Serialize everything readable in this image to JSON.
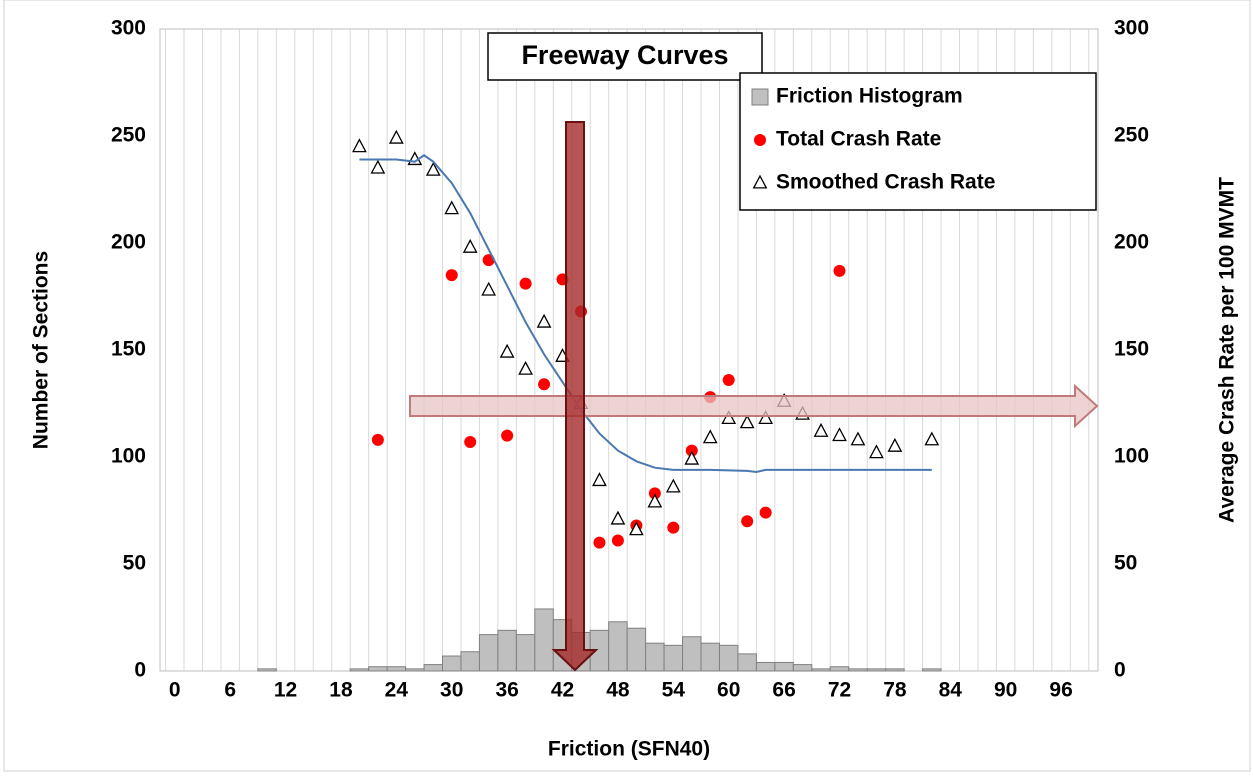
{
  "chart_data": {
    "type": "combo",
    "annotation": "Freeway Curves",
    "xlabel": "Friction (SFN40)",
    "ylabel": "Number of Sections",
    "y2label": "Average Crash Rate per 100 MVMT",
    "xlim": [
      -1.6,
      100
    ],
    "xticks": [
      0,
      6,
      12,
      18,
      24,
      30,
      36,
      42,
      48,
      54,
      60,
      66,
      72,
      78,
      84,
      90,
      96
    ],
    "ylim": [
      0,
      300
    ],
    "yticks": [
      0,
      50,
      100,
      150,
      200,
      250,
      300
    ],
    "y2lim": [
      0,
      300
    ],
    "y2ticks": [
      0,
      50,
      100,
      150,
      200,
      250,
      300
    ],
    "grid": "x",
    "legend": "upper right",
    "histogram": {
      "name": "Friction Histogram",
      "color": "#bfbfbf",
      "bins": [
        -1,
        1,
        3,
        5,
        7,
        9,
        11,
        13,
        15,
        17,
        19,
        21,
        23,
        25,
        27,
        29,
        31,
        33,
        35,
        37,
        39,
        41,
        43,
        45,
        47,
        49,
        51,
        53,
        55,
        57,
        59,
        61,
        63,
        65,
        67,
        69,
        71,
        73,
        75,
        77,
        79,
        81,
        83,
        85,
        87,
        89,
        91,
        93,
        95,
        97,
        99
      ],
      "counts": [
        0,
        0,
        0,
        0,
        0,
        1,
        0,
        0,
        0,
        0,
        1,
        2,
        2,
        1,
        3,
        7,
        9,
        17,
        19,
        17,
        29,
        24,
        18,
        19,
        23,
        20,
        13,
        12,
        16,
        13,
        12,
        8,
        4,
        4,
        3,
        1,
        2,
        1,
        1,
        1,
        0,
        1,
        0,
        0,
        0,
        0,
        0,
        0,
        0,
        0
      ]
    },
    "series": [
      {
        "name": "Total Crash Rate",
        "type": "scatter",
        "marker": "circle",
        "color": "#ff0000",
        "axis": "y2",
        "x": [
          22,
          30,
          32,
          34,
          36,
          38,
          40,
          42,
          44,
          46,
          48,
          50,
          52,
          54,
          56,
          58,
          60,
          62,
          64,
          72
        ],
        "values": [
          108,
          185,
          107,
          192,
          110,
          181,
          134,
          183,
          168,
          60,
          61,
          68,
          83,
          67,
          103,
          128,
          136,
          70,
          74,
          187
        ]
      },
      {
        "name": "Smoothed Crash Rate",
        "type": "scatter",
        "marker": "triangle",
        "color": "#000000",
        "axis": "y2",
        "x": [
          20,
          22,
          24,
          26,
          28,
          30,
          32,
          34,
          36,
          38,
          40,
          42,
          44,
          46,
          48,
          50,
          52,
          54,
          56,
          58,
          60,
          62,
          64,
          66,
          68,
          70,
          72,
          74,
          76,
          78,
          82
        ],
        "values": [
          245,
          235,
          249,
          239,
          234,
          216,
          198,
          178,
          149,
          141,
          163,
          147,
          125,
          89,
          71,
          66,
          79,
          86,
          99,
          109,
          118,
          116,
          118,
          126,
          120,
          112,
          110,
          108,
          102,
          105,
          108
        ]
      },
      {
        "type": "line",
        "color": "#4a78b0",
        "axis": "y2",
        "x": [
          20,
          24,
          26,
          27,
          28,
          30,
          32,
          34,
          36,
          38,
          40,
          42,
          44,
          46,
          48,
          50,
          52,
          54,
          58,
          62,
          63,
          64,
          70,
          82
        ],
        "values": [
          239,
          239,
          238,
          241,
          238,
          228,
          214,
          197,
          180,
          163,
          148,
          135,
          122,
          111,
          103,
          98,
          95,
          94,
          94,
          93.5,
          93,
          94,
          94,
          94
        ]
      }
    ]
  }
}
